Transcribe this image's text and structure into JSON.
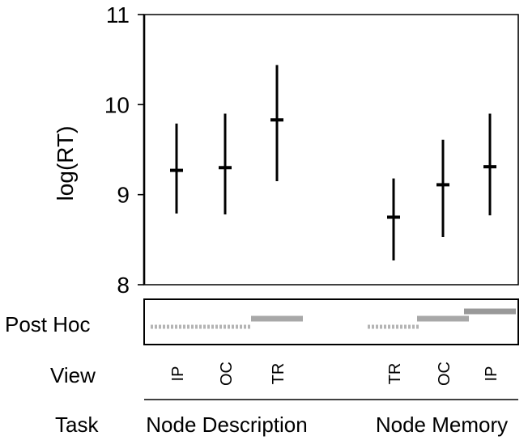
{
  "chart_data": {
    "type": "errorbar",
    "ylabel": "log(RT)",
    "ylim": [
      8,
      11
    ],
    "yticks": [
      "8",
      "9",
      "10",
      "11"
    ],
    "grid": false,
    "categories": [
      "IP",
      "OC",
      "TR",
      "TR",
      "OC",
      "IP"
    ],
    "groups": [
      {
        "name": "Node Description",
        "members": [
          0,
          1,
          2
        ]
      },
      {
        "name": "Node Memory",
        "members": [
          3,
          4,
          5
        ]
      }
    ],
    "points": [
      {
        "view": "IP",
        "task": "Node Description",
        "mean": 9.27,
        "low": 8.79,
        "high": 9.79
      },
      {
        "view": "OC",
        "task": "Node Description",
        "mean": 9.3,
        "low": 8.78,
        "high": 9.9
      },
      {
        "view": "TR",
        "task": "Node Description",
        "mean": 9.83,
        "low": 9.15,
        "high": 10.44
      },
      {
        "view": "TR",
        "task": "Node Memory",
        "mean": 8.75,
        "low": 8.27,
        "high": 9.18
      },
      {
        "view": "OC",
        "task": "Node Memory",
        "mean": 9.11,
        "low": 8.53,
        "high": 9.61
      },
      {
        "view": "IP",
        "task": "Node Memory",
        "mean": 9.31,
        "low": 8.77,
        "high": 9.9
      }
    ],
    "post_hoc": [
      {
        "group": "Node Description",
        "rank": 1,
        "from": 0,
        "to": 1,
        "style": "dashed",
        "color": "#b4b4b4"
      },
      {
        "group": "Node Description",
        "rank": 2,
        "from": 2,
        "to": 2,
        "style": "solid",
        "color": "#a8a8a8"
      },
      {
        "group": "Node Memory",
        "rank": 1,
        "from": 3,
        "to": 3,
        "style": "dashed",
        "color": "#b4b4b4"
      },
      {
        "group": "Node Memory",
        "rank": 2,
        "from": 4,
        "to": 4,
        "style": "solid",
        "color": "#a8a8a8"
      },
      {
        "group": "Node Memory",
        "rank": 3,
        "from": 5,
        "to": 5,
        "style": "solid",
        "color": "#999999"
      }
    ]
  },
  "labels": {
    "post_hoc": "Post Hoc",
    "view": "View",
    "task": "Task"
  }
}
